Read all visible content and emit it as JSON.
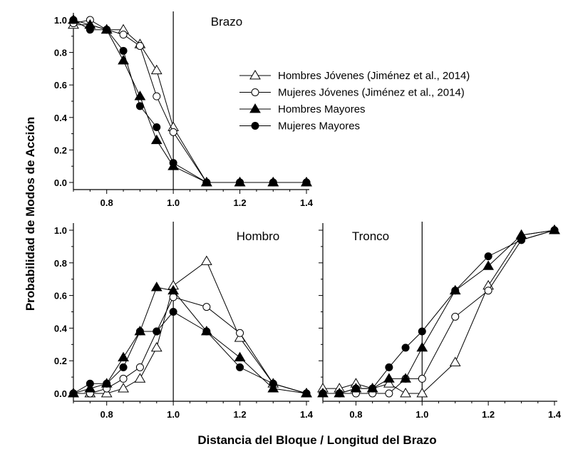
{
  "axis_labels": {
    "x": "Distancia del Bloque / Longitud del Brazo",
    "y": "Probabilidad de Modos de Acción"
  },
  "legend": [
    {
      "label": "Hombres Jóvenes (Jiménez et al., 2014)",
      "marker": "triangle-open"
    },
    {
      "label": "Mujeres Jóvenes (Jiménez et al., 2014)",
      "marker": "circle-open"
    },
    {
      "label": "Hombres Mayores",
      "marker": "triangle-filled"
    },
    {
      "label": "Mujeres Mayores",
      "marker": "circle-filled"
    }
  ],
  "chart_data": [
    {
      "type": "line",
      "title": "Brazo",
      "xlim": [
        0.7,
        1.4
      ],
      "ylim": [
        0.0,
        1.0
      ],
      "xticks": [
        "0.8",
        "1.0",
        "1.2",
        "1.4"
      ],
      "yticks": [
        "0.0",
        "0.2",
        "0.4",
        "0.6",
        "0.8",
        "1.0"
      ],
      "reference_x": 1.0,
      "x": [
        0.7,
        0.75,
        0.8,
        0.85,
        0.9,
        0.95,
        1.0,
        1.1,
        1.2,
        1.3,
        1.4
      ],
      "series": [
        {
          "name": "Hombres Jóvenes (Jiménez et al., 2014)",
          "marker": "triangle-open",
          "values": [
            0.97,
            0.97,
            0.94,
            0.94,
            0.85,
            0.69,
            0.34,
            0.0,
            0.0,
            0.0,
            0.0
          ]
        },
        {
          "name": "Mujeres Jóvenes (Jiménez et al., 2014)",
          "marker": "circle-open",
          "values": [
            0.98,
            1.0,
            0.94,
            0.91,
            0.84,
            0.53,
            0.31,
            0.0,
            0.0,
            0.0,
            0.0
          ]
        },
        {
          "name": "Hombres Mayores",
          "marker": "triangle-filled",
          "values": [
            1.0,
            0.97,
            0.94,
            0.75,
            0.53,
            0.26,
            0.1,
            0.0,
            0.0,
            0.0,
            0.0
          ]
        },
        {
          "name": "Mujeres Mayores",
          "marker": "circle-filled",
          "values": [
            1.0,
            0.94,
            0.94,
            0.81,
            0.47,
            0.34,
            0.12,
            0.0,
            0.0,
            0.0,
            0.0
          ]
        }
      ]
    },
    {
      "type": "line",
      "title": "Hombro",
      "xlim": [
        0.7,
        1.4
      ],
      "ylim": [
        0.0,
        1.0
      ],
      "xticks": [
        "0.8",
        "1.0",
        "1.2",
        "1.4"
      ],
      "yticks": [
        "0.0",
        "0.2",
        "0.4",
        "0.6",
        "0.8",
        "1.0"
      ],
      "reference_x": 1.0,
      "x": [
        0.7,
        0.75,
        0.8,
        0.85,
        0.9,
        0.95,
        1.0,
        1.1,
        1.2,
        1.3,
        1.4
      ],
      "series": [
        {
          "name": "Hombres Jóvenes (Jiménez et al., 2014)",
          "marker": "triangle-open",
          "values": [
            0.0,
            0.0,
            0.0,
            0.03,
            0.09,
            0.28,
            0.66,
            0.81,
            0.34,
            0.06,
            0.0
          ]
        },
        {
          "name": "Mujeres Jóvenes (Jiménez et al., 2014)",
          "marker": "circle-open",
          "values": [
            0.0,
            0.0,
            0.03,
            0.09,
            0.16,
            0.38,
            0.59,
            0.53,
            0.37,
            0.06,
            0.0
          ]
        },
        {
          "name": "Hombres Mayores",
          "marker": "triangle-filled",
          "values": [
            0.0,
            0.03,
            0.06,
            0.22,
            0.38,
            0.65,
            0.63,
            0.38,
            0.22,
            0.03,
            0.0
          ]
        },
        {
          "name": "Mujeres Mayores",
          "marker": "circle-filled",
          "values": [
            0.0,
            0.06,
            0.06,
            0.16,
            0.38,
            0.38,
            0.5,
            0.38,
            0.16,
            0.06,
            0.0
          ]
        }
      ]
    },
    {
      "type": "line",
      "title": "Tronco",
      "xlim": [
        0.7,
        1.4
      ],
      "ylim": [
        0.0,
        1.0
      ],
      "xticks": [
        "0.8",
        "1.0",
        "1.2",
        "1.4"
      ],
      "yticks": [],
      "reference_x": 1.0,
      "x": [
        0.7,
        0.75,
        0.8,
        0.85,
        0.9,
        0.95,
        1.0,
        1.1,
        1.2,
        1.3,
        1.4
      ],
      "series": [
        {
          "name": "Hombres Jóvenes (Jiménez et al., 2014)",
          "marker": "triangle-open",
          "values": [
            0.03,
            0.03,
            0.06,
            0.03,
            0.06,
            0.0,
            0.0,
            0.19,
            0.66,
            0.97,
            1.0
          ]
        },
        {
          "name": "Mujeres Jóvenes (Jiménez et al., 2014)",
          "marker": "circle-open",
          "values": [
            0.0,
            0.0,
            0.0,
            0.0,
            0.0,
            0.09,
            0.09,
            0.47,
            0.63,
            0.94,
            1.0
          ]
        },
        {
          "name": "Hombres Mayores",
          "marker": "triangle-filled",
          "values": [
            0.0,
            0.0,
            0.03,
            0.03,
            0.09,
            0.09,
            0.28,
            0.63,
            0.78,
            0.97,
            1.0
          ]
        },
        {
          "name": "Mujeres Mayores",
          "marker": "circle-filled",
          "values": [
            0.0,
            0.0,
            0.03,
            0.03,
            0.16,
            0.28,
            0.38,
            0.63,
            0.84,
            0.94,
            1.0
          ]
        }
      ]
    }
  ]
}
